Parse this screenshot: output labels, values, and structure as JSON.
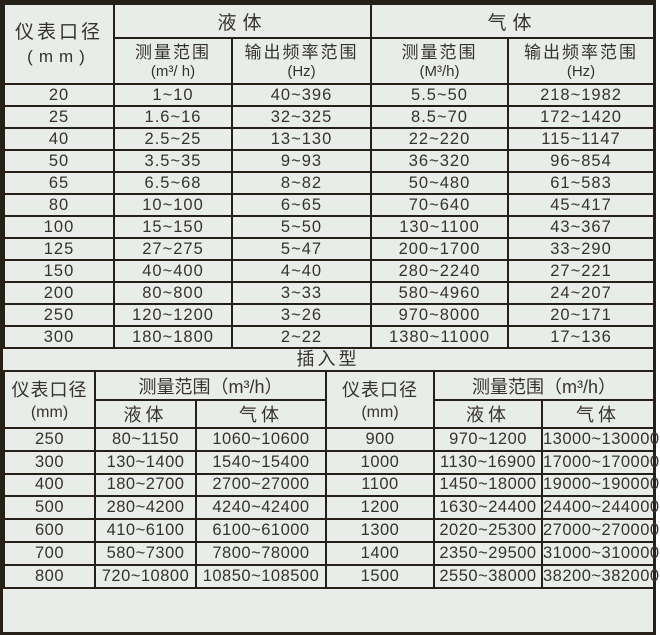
{
  "colors": {
    "background": "#e9ede9",
    "border": "#272019",
    "text": "#363230"
  },
  "flange_table": {
    "corner": {
      "title": "仪表口径",
      "unit": "(mm)"
    },
    "group_liquid": "液体",
    "group_gas": "气体",
    "subheaders": [
      {
        "title": "测量范围",
        "unit": "(m³/ h)"
      },
      {
        "title": "输出频率范围",
        "unit": "(Hz)"
      },
      {
        "title": "测量范围",
        "unit": "(M³/h)"
      },
      {
        "title": "输出频率范围",
        "unit": "(Hz)"
      }
    ],
    "rows": [
      [
        "20",
        "1~10",
        "40~396",
        "5.5~50",
        "218~1982"
      ],
      [
        "25",
        "1.6~16",
        "32~325",
        "8.5~70",
        "172~1420"
      ],
      [
        "40",
        "2.5~25",
        "13~130",
        "22~220",
        "115~1147"
      ],
      [
        "50",
        "3.5~35",
        "9~93",
        "36~320",
        "96~854"
      ],
      [
        "65",
        "6.5~68",
        "8~82",
        "50~480",
        "61~583"
      ],
      [
        "80",
        "10~100",
        "6~65",
        "70~640",
        "45~417"
      ],
      [
        "100",
        "15~150",
        "5~50",
        "130~1100",
        "43~367"
      ],
      [
        "125",
        "27~275",
        "5~47",
        "200~1700",
        "33~290"
      ],
      [
        "150",
        "40~400",
        "4~40",
        "280~2240",
        "27~221"
      ],
      [
        "200",
        "80~800",
        "3~33",
        "580~4960",
        "24~207"
      ],
      [
        "250",
        "120~1200",
        "3~26",
        "970~8000",
        "20~171"
      ],
      [
        "300",
        "180~1800",
        "2~22",
        "1380~11000",
        "17~136"
      ]
    ]
  },
  "insertion_table": {
    "title": "插入型",
    "left_corner": {
      "title": "仪表口径",
      "unit": "(mm)"
    },
    "left_range_header": "测量范围（m³/h）",
    "left_liquid": "液体",
    "left_gas": "气体",
    "right_corner": {
      "title": "仪表口径",
      "unit": "(mm)"
    },
    "right_range_header": "测量范围（m³/h）",
    "right_liquid": "液体",
    "right_gas": "气体",
    "rows": [
      [
        "250",
        "80~1150",
        "1060~10600",
        "900",
        "970~1200",
        "13000~130000"
      ],
      [
        "300",
        "130~1400",
        "1540~15400",
        "1000",
        "1130~16900",
        "17000~170000"
      ],
      [
        "400",
        "180~2700",
        "2700~27000",
        "1100",
        "1450~18000",
        "19000~190000"
      ],
      [
        "500",
        "280~4200",
        "4240~42400",
        "1200",
        "1630~24400",
        "24400~244000"
      ],
      [
        "600",
        "410~6100",
        "6100~61000",
        "1300",
        "2020~25300",
        "27000~270000"
      ],
      [
        "700",
        "580~7300",
        "7800~78000",
        "1400",
        "2350~29500",
        "31000~310000"
      ],
      [
        "800",
        "720~10800",
        "10850~108500",
        "1500",
        "2550~38000",
        "38200~382000"
      ]
    ]
  }
}
